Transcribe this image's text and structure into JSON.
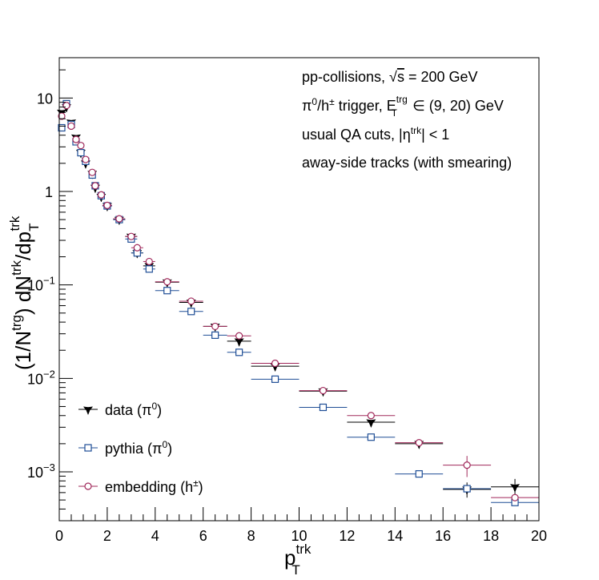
{
  "chart_data": {
    "type": "scatter",
    "title": "",
    "xlabel": {
      "base": "p",
      "sub": "T",
      "sup": "trk"
    },
    "ylabel": {
      "parts": [
        "(1/N",
        "trg",
        ") dN",
        "trk",
        "/dp",
        "T",
        "trk"
      ]
    },
    "x_range": [
      0,
      20
    ],
    "y_range": [
      0.0003,
      27
    ],
    "y_scale": "log",
    "grid": false,
    "legend_placement": "bottom-left",
    "x_ticks": [
      "0",
      "2",
      "4",
      "6",
      "8",
      "10",
      "12",
      "14",
      "16",
      "18",
      "20"
    ],
    "y_ticks": [
      {
        "value": 10,
        "label": "10"
      },
      {
        "value": 1,
        "label": "1"
      },
      {
        "value": 0.1,
        "label": "10",
        "exp": "−1"
      },
      {
        "value": 0.01,
        "label": "10",
        "exp": "−2"
      },
      {
        "value": 0.001,
        "label": "10",
        "exp": "−3"
      }
    ],
    "annotations": [
      "pp-collisions, √s = 200 GeV",
      "π⁰/h± trigger, E_T^trg ∈ (9, 20) GeV",
      "usual QA cuts, |η^trk| < 1",
      "away-side tracks (with smearing)"
    ],
    "annotation_parts": {
      "line1": [
        "pp-collisions, ",
        "√",
        "s",
        " = 200 GeV"
      ],
      "line2": [
        "π",
        "0",
        "/h",
        "±",
        " trigger, E",
        "trg",
        "T",
        " ∈ (9, 20) GeV"
      ],
      "line3": [
        "usual QA cuts, |η",
        "trk",
        "| < 1"
      ],
      "line4": "away-side tracks (with smearing)"
    },
    "series": [
      {
        "name": "data (π⁰)",
        "legend_parts": [
          "data (π",
          "0",
          ")"
        ],
        "marker": "star",
        "color": "#000000",
        "points": [
          {
            "x": 0.1,
            "y": 7.0,
            "xerr": 0.1
          },
          {
            "x": 0.3,
            "y": 8.0,
            "xerr": 0.1
          },
          {
            "x": 0.5,
            "y": 5.5,
            "xerr": 0.1
          },
          {
            "x": 0.7,
            "y": 3.8,
            "xerr": 0.1
          },
          {
            "x": 0.9,
            "y": 2.6,
            "xerr": 0.1
          },
          {
            "x": 1.1,
            "y": 2.0,
            "xerr": 0.15
          },
          {
            "x": 1.375,
            "y": 1.55,
            "xerr": 0.125
          },
          {
            "x": 1.5,
            "y": 1.1,
            "xerr": 0.15
          },
          {
            "x": 1.75,
            "y": 0.88,
            "xerr": 0.15
          },
          {
            "x": 2.0,
            "y": 0.7,
            "xerr": 0.2
          },
          {
            "x": 2.5,
            "y": 0.5,
            "xerr": 0.25
          },
          {
            "x": 3.0,
            "y": 0.33,
            "xerr": 0.25
          },
          {
            "x": 3.25,
            "y": 0.22,
            "xerr": 0.25
          },
          {
            "x": 3.75,
            "y": 0.16,
            "xerr": 0.25
          },
          {
            "x": 4.5,
            "y": 0.107,
            "xerr": 0.5
          },
          {
            "x": 5.5,
            "y": 0.065,
            "xerr": 0.5
          },
          {
            "x": 6.5,
            "y": 0.036,
            "xerr": 0.5
          },
          {
            "x": 7.5,
            "y": 0.025,
            "xerr": 0.5
          },
          {
            "x": 9.0,
            "y": 0.0135,
            "xerr": 1.0
          },
          {
            "x": 11.0,
            "y": 0.0073,
            "xerr": 1.0
          },
          {
            "x": 13.0,
            "y": 0.0034,
            "xerr": 1.0
          },
          {
            "x": 15.0,
            "y": 0.002,
            "xerr": 1.0
          },
          {
            "x": 17.0,
            "y": 0.00065,
            "xerr": 1.0,
            "yerr": 0.00012
          },
          {
            "x": 19.0,
            "y": 0.00069,
            "xerr": 1.0,
            "yerr": 0.00015
          }
        ]
      },
      {
        "name": "pythia (π⁰)",
        "legend_parts": [
          "pythia (π",
          "0",
          ")"
        ],
        "marker": "open-square",
        "color": "#1f4e96",
        "points": [
          {
            "x": 0.1,
            "y": 4.8,
            "xerr": 0.1
          },
          {
            "x": 0.3,
            "y": 8.7,
            "xerr": 0.1
          },
          {
            "x": 0.5,
            "y": 5.2,
            "xerr": 0.1
          },
          {
            "x": 0.7,
            "y": 3.4,
            "xerr": 0.1
          },
          {
            "x": 0.9,
            "y": 2.6,
            "xerr": 0.1
          },
          {
            "x": 1.1,
            "y": 2.1,
            "xerr": 0.15
          },
          {
            "x": 1.375,
            "y": 1.5,
            "xerr": 0.125
          },
          {
            "x": 1.5,
            "y": 1.15,
            "xerr": 0.15
          },
          {
            "x": 1.75,
            "y": 0.9,
            "xerr": 0.15
          },
          {
            "x": 2.0,
            "y": 0.7,
            "xerr": 0.2
          },
          {
            "x": 2.5,
            "y": 0.5,
            "xerr": 0.25
          },
          {
            "x": 3.0,
            "y": 0.31,
            "xerr": 0.25
          },
          {
            "x": 3.25,
            "y": 0.22,
            "xerr": 0.25
          },
          {
            "x": 3.75,
            "y": 0.148,
            "xerr": 0.25
          },
          {
            "x": 4.5,
            "y": 0.087,
            "xerr": 0.5
          },
          {
            "x": 5.5,
            "y": 0.052,
            "xerr": 0.5
          },
          {
            "x": 6.5,
            "y": 0.029,
            "xerr": 0.5
          },
          {
            "x": 7.5,
            "y": 0.019,
            "xerr": 0.5
          },
          {
            "x": 9.0,
            "y": 0.0098,
            "xerr": 1.0
          },
          {
            "x": 11.0,
            "y": 0.0049,
            "xerr": 1.0
          },
          {
            "x": 13.0,
            "y": 0.00235,
            "xerr": 1.0
          },
          {
            "x": 15.0,
            "y": 0.00095,
            "xerr": 1.0
          },
          {
            "x": 17.0,
            "y": 0.00066,
            "xerr": 1.0
          },
          {
            "x": 19.0,
            "y": 0.00047,
            "xerr": 1.0
          }
        ]
      },
      {
        "name": "embedding (h±)",
        "legend_parts": [
          "embedding (h",
          "±",
          ")"
        ],
        "marker": "open-circle",
        "color": "#a0285a",
        "points": [
          {
            "x": 0.1,
            "y": 6.4,
            "xerr": 0.1
          },
          {
            "x": 0.3,
            "y": 8.3,
            "xerr": 0.1
          },
          {
            "x": 0.5,
            "y": 5.0,
            "xerr": 0.1
          },
          {
            "x": 0.7,
            "y": 3.6,
            "xerr": 0.1
          },
          {
            "x": 0.9,
            "y": 3.1,
            "xerr": 0.1
          },
          {
            "x": 1.1,
            "y": 2.2,
            "xerr": 0.15
          },
          {
            "x": 1.375,
            "y": 1.6,
            "xerr": 0.125
          },
          {
            "x": 1.5,
            "y": 1.15,
            "xerr": 0.15
          },
          {
            "x": 1.75,
            "y": 0.92,
            "xerr": 0.15
          },
          {
            "x": 2.0,
            "y": 0.71,
            "xerr": 0.2
          },
          {
            "x": 2.5,
            "y": 0.51,
            "xerr": 0.25
          },
          {
            "x": 3.0,
            "y": 0.33,
            "xerr": 0.25
          },
          {
            "x": 3.25,
            "y": 0.25,
            "xerr": 0.25
          },
          {
            "x": 3.75,
            "y": 0.178,
            "xerr": 0.25
          },
          {
            "x": 4.5,
            "y": 0.108,
            "xerr": 0.5
          },
          {
            "x": 5.5,
            "y": 0.067,
            "xerr": 0.5
          },
          {
            "x": 6.5,
            "y": 0.036,
            "xerr": 0.5
          },
          {
            "x": 7.5,
            "y": 0.0285,
            "xerr": 0.5
          },
          {
            "x": 9.0,
            "y": 0.0145,
            "xerr": 1.0
          },
          {
            "x": 11.0,
            "y": 0.0074,
            "xerr": 1.0
          },
          {
            "x": 13.0,
            "y": 0.004,
            "xerr": 1.0
          },
          {
            "x": 15.0,
            "y": 0.00205,
            "xerr": 1.0
          },
          {
            "x": 17.0,
            "y": 0.00118,
            "xerr": 1.0,
            "yerr": 0.0003
          },
          {
            "x": 19.0,
            "y": 0.00053,
            "xerr": 1.0
          }
        ]
      }
    ]
  }
}
